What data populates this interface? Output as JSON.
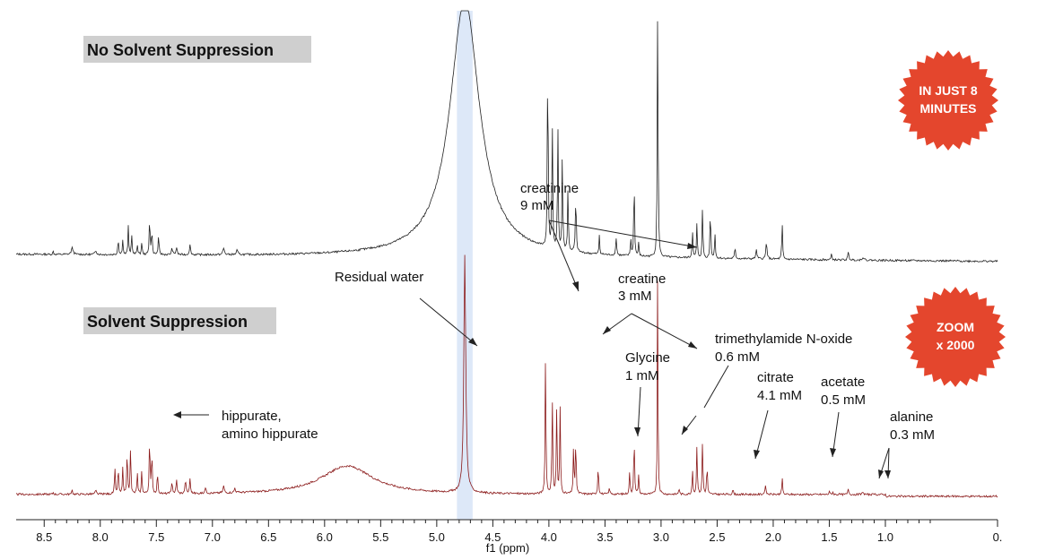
{
  "chart_data": {
    "type": "line",
    "xlabel": "f1 (ppm)",
    "xlim": [
      8.75,
      0.0
    ],
    "x_ticks": [
      "8.5",
      "8.0",
      "7.5",
      "7.0",
      "6.5",
      "6.0",
      "5.5",
      "5.0",
      "4.5",
      "4.0",
      "3.5",
      "3.0",
      "2.5",
      "2.0",
      "1.5",
      "1.0",
      "0."
    ],
    "x_tick_values": [
      8.5,
      8.0,
      7.5,
      7.0,
      6.5,
      6.0,
      5.5,
      5.0,
      4.5,
      4.0,
      3.5,
      3.0,
      2.5,
      2.0,
      1.5,
      1.0,
      0.0
    ],
    "water_band": [
      4.82,
      4.68
    ],
    "panels": {
      "top": "No Solvent Suppression",
      "bottom": "Solvent Suppression"
    },
    "badges": {
      "top": [
        "IN JUST 8",
        "MINUTES"
      ],
      "bottom": [
        "ZOOM",
        "x 2000"
      ]
    },
    "annotations": {
      "water": "Residual water",
      "creatinine": [
        "creatinine",
        "9 mM"
      ],
      "creatine": [
        "creatine",
        "3 mM"
      ],
      "glycine": [
        "Glycine",
        "1 mM"
      ],
      "tmao": [
        "trimethylamide N-oxide",
        "0.6 mM"
      ],
      "citrate": [
        "citrate",
        "4.1 mM"
      ],
      "acetate": [
        "acetate",
        "0.5 mM"
      ],
      "alanine": [
        "alanine",
        "0.3 mM"
      ],
      "hippurate": [
        "hippurate,",
        "amino hippurate"
      ]
    },
    "series": [
      {
        "color": "#222222",
        "peaks": [
          [
            8.42,
            0.015,
            0.004
          ],
          [
            8.25,
            0.03,
            0.01
          ],
          [
            8.04,
            0.02,
            0.008
          ],
          [
            7.84,
            0.08,
            0.004
          ],
          [
            7.8,
            0.07,
            0.004
          ],
          [
            7.75,
            0.13,
            0.004
          ],
          [
            7.72,
            0.1,
            0.004
          ],
          [
            7.67,
            0.05,
            0.004
          ],
          [
            7.63,
            0.06,
            0.004
          ],
          [
            7.56,
            0.19,
            0.004
          ],
          [
            7.54,
            0.12,
            0.004
          ],
          [
            7.48,
            0.08,
            0.005
          ],
          [
            7.36,
            0.03,
            0.006
          ],
          [
            7.32,
            0.035,
            0.006
          ],
          [
            7.2,
            0.045,
            0.006
          ],
          [
            6.9,
            0.03,
            0.008
          ],
          [
            6.78,
            0.02,
            0.008
          ],
          [
            4.01,
            0.95,
            0.004
          ],
          [
            3.97,
            0.6,
            0.004
          ],
          [
            3.92,
            0.6,
            0.004
          ],
          [
            3.88,
            0.45,
            0.004
          ],
          [
            3.83,
            0.3,
            0.004
          ],
          [
            3.76,
            0.25,
            0.005
          ],
          [
            3.55,
            0.09,
            0.004
          ],
          [
            3.4,
            0.08,
            0.005
          ],
          [
            3.27,
            0.08,
            0.004
          ],
          [
            3.24,
            0.38,
            0.004
          ],
          [
            3.2,
            0.06,
            0.004
          ],
          [
            3.03,
            1.2,
            0.004
          ],
          [
            2.72,
            0.13,
            0.004
          ],
          [
            2.68,
            0.17,
            0.004
          ],
          [
            2.63,
            0.24,
            0.004
          ],
          [
            2.56,
            0.24,
            0.004
          ],
          [
            2.52,
            0.12,
            0.004
          ],
          [
            2.34,
            0.05,
            0.005
          ],
          [
            2.15,
            0.04,
            0.006
          ],
          [
            2.06,
            0.08,
            0.006
          ],
          [
            1.92,
            0.17,
            0.004
          ],
          [
            1.48,
            0.025,
            0.005
          ],
          [
            1.33,
            0.035,
            0.006
          ],
          [
            1.2,
            0.015,
            0.008
          ]
        ]
      },
      {
        "color": "#8b1a1a",
        "peaks": [
          [
            8.42,
            0.008,
            0.004
          ],
          [
            8.25,
            0.018,
            0.004
          ],
          [
            8.04,
            0.015,
            0.006
          ],
          [
            7.87,
            0.11,
            0.004
          ],
          [
            7.84,
            0.12,
            0.004
          ],
          [
            7.8,
            0.11,
            0.004
          ],
          [
            7.76,
            0.19,
            0.004
          ],
          [
            7.73,
            0.2,
            0.004
          ],
          [
            7.67,
            0.09,
            0.004
          ],
          [
            7.63,
            0.1,
            0.004
          ],
          [
            7.56,
            0.25,
            0.004
          ],
          [
            7.54,
            0.18,
            0.004
          ],
          [
            7.49,
            0.1,
            0.004
          ],
          [
            7.36,
            0.05,
            0.005
          ],
          [
            7.32,
            0.06,
            0.005
          ],
          [
            7.24,
            0.06,
            0.005
          ],
          [
            7.2,
            0.06,
            0.005
          ],
          [
            7.06,
            0.03,
            0.005
          ],
          [
            6.9,
            0.03,
            0.006
          ],
          [
            6.8,
            0.02,
            0.006
          ],
          [
            5.8,
            0.12,
            0.28
          ],
          [
            4.75,
            1.0,
            0.01
          ],
          [
            4.03,
            0.6,
            0.004
          ],
          [
            3.97,
            0.41,
            0.004
          ],
          [
            3.93,
            0.38,
            0.004
          ],
          [
            3.9,
            0.36,
            0.004
          ],
          [
            3.78,
            0.2,
            0.004
          ],
          [
            3.76,
            0.24,
            0.004
          ],
          [
            3.56,
            0.13,
            0.004
          ],
          [
            3.46,
            0.03,
            0.004
          ],
          [
            3.28,
            0.1,
            0.004
          ],
          [
            3.24,
            0.26,
            0.004
          ],
          [
            3.2,
            0.08,
            0.004
          ],
          [
            3.03,
            1.05,
            0.003
          ],
          [
            2.84,
            0.03,
            0.004
          ],
          [
            2.72,
            0.1,
            0.004
          ],
          [
            2.68,
            0.22,
            0.004
          ],
          [
            2.63,
            0.23,
            0.004
          ],
          [
            2.59,
            0.13,
            0.004
          ],
          [
            2.36,
            0.02,
            0.005
          ],
          [
            2.07,
            0.035,
            0.006
          ],
          [
            1.92,
            0.07,
            0.004
          ],
          [
            1.5,
            0.015,
            0.004
          ],
          [
            1.47,
            0.012,
            0.004
          ],
          [
            1.33,
            0.025,
            0.005
          ],
          [
            1.2,
            0.012,
            0.006
          ]
        ]
      }
    ]
  }
}
